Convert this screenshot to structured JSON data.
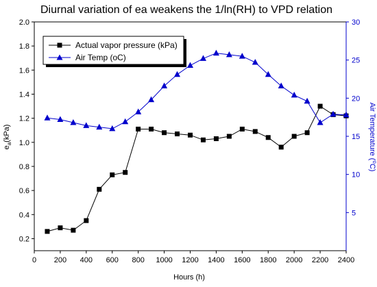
{
  "chart_data": {
    "type": "line",
    "title": "Diurnal variation of ea weakens the 1/ln(RH) to VPD relation",
    "xlabel": "Hours (h)",
    "ylabel_left_main": "e",
    "ylabel_left_sub": "a",
    "ylabel_left_tail": "(kPa)",
    "ylabel_right_head": "Air Temperature (",
    "ylabel_right_sup": "o",
    "ylabel_right_tail": "C)",
    "xlim": [
      0,
      2400
    ],
    "ylim_left": [
      0.1,
      2.0
    ],
    "ylim_right": [
      0,
      30
    ],
    "x_ticks": [
      0,
      200,
      400,
      600,
      800,
      1000,
      1200,
      1400,
      1600,
      1800,
      2000,
      2200,
      2400
    ],
    "y_left_ticks": [
      "0.2",
      "0.4",
      "0.6",
      "0.8",
      "1.0",
      "1.2",
      "1.4",
      "1.6",
      "1.8",
      "2.0"
    ],
    "y_right_ticks": [
      5,
      10,
      15,
      20,
      25,
      30
    ],
    "grid": false,
    "legend_position": "top-left",
    "x": [
      100,
      200,
      300,
      400,
      500,
      600,
      700,
      800,
      900,
      1000,
      1100,
      1200,
      1300,
      1400,
      1500,
      1600,
      1700,
      1800,
      1900,
      2000,
      2100,
      2200,
      2300,
      2400
    ],
    "series": [
      {
        "name": "Actual vapor pressure (kPa)",
        "axis": "left",
        "marker": "square",
        "color": "#000000",
        "values": [
          0.26,
          0.29,
          0.27,
          0.35,
          0.61,
          0.73,
          0.75,
          1.11,
          1.11,
          1.08,
          1.07,
          1.06,
          1.02,
          1.03,
          1.05,
          1.11,
          1.09,
          1.04,
          0.96,
          1.05,
          1.08,
          1.3,
          1.23,
          1.22
        ]
      },
      {
        "name": "Air Temp (oC)",
        "axis": "right",
        "marker": "triangle",
        "color": "#0000cc",
        "values": [
          17.4,
          17.2,
          16.8,
          16.4,
          16.2,
          16.0,
          16.9,
          18.2,
          19.8,
          21.6,
          23.1,
          24.3,
          25.2,
          25.9,
          25.7,
          25.5,
          24.7,
          23.1,
          21.6,
          20.4,
          19.6,
          16.8,
          17.9,
          17.8
        ]
      }
    ]
  }
}
